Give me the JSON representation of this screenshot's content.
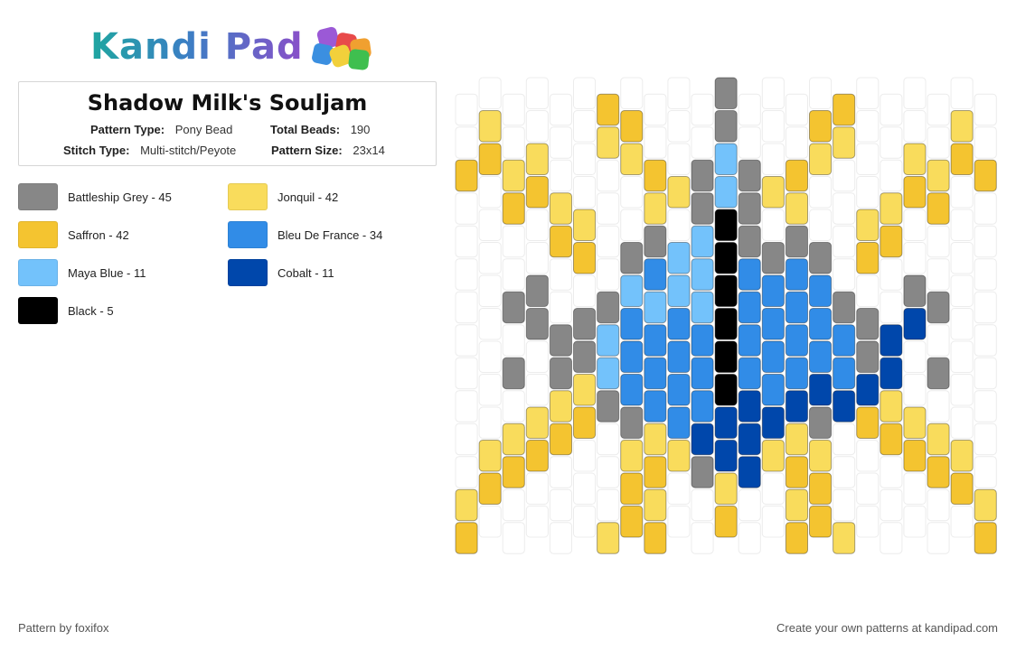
{
  "logo": {
    "text": "Kandi Pad"
  },
  "pattern": {
    "title": "Shadow Milk's Souljam",
    "type_label": "Pattern Type:",
    "type_value": "Pony Bead",
    "beads_label": "Total Beads:",
    "beads_value": "190",
    "stitch_label": "Stitch Type:",
    "stitch_value": "Multi-stitch/Peyote",
    "size_label": "Pattern Size:",
    "size_value": "23x14"
  },
  "legend": [
    {
      "label": "Battleship Grey - 45",
      "color": "#878787"
    },
    {
      "label": "Jonquil - 42",
      "color": "#f9dc5c"
    },
    {
      "label": "Saffron - 42",
      "color": "#f4c430"
    },
    {
      "label": "Bleu De France - 34",
      "color": "#318ce7"
    },
    {
      "label": "Maya Blue - 11",
      "color": "#73c2fb"
    },
    {
      "label": "Cobalt - 11",
      "color": "#0047ab"
    },
    {
      "label": "Black - 5",
      "color": "#000000"
    }
  ],
  "footer": {
    "credit": "Pattern by foxifox",
    "cta": "Create your own patterns at kandipad.com"
  }
}
